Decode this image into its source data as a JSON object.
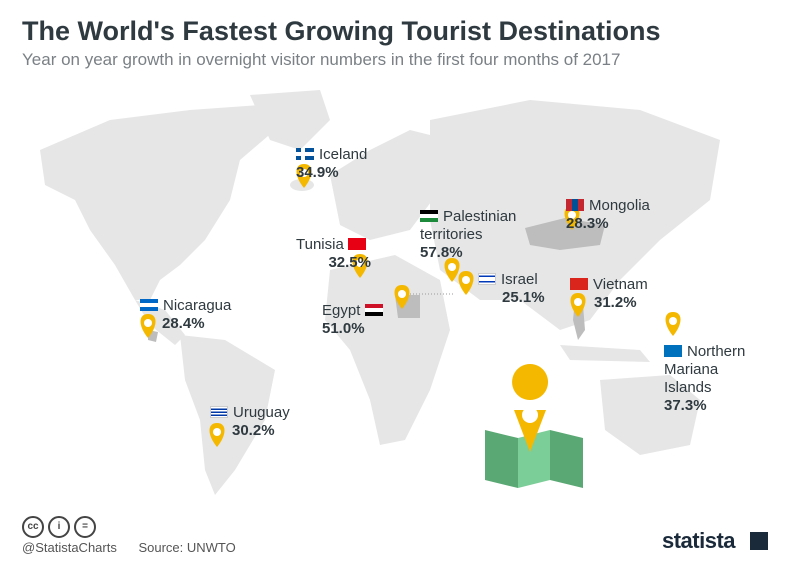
{
  "title": "The World's Fastest Growing Tourist Destinations",
  "subtitle": "Year on year growth in overnight visitor numbers in the first four months of 2017",
  "footer": {
    "handle": "@StatistaCharts",
    "source": "Source: UNWTO",
    "brand": "statista"
  },
  "colors": {
    "pin": "#f5b800",
    "land": "#e6e6e6",
    "highlight": "#bdbdbd",
    "text": "#2f3a40",
    "map_icon_green": "#6cc08b"
  },
  "chart_data": {
    "type": "table",
    "title": "The World's Fastest Growing Tourist Destinations",
    "subtitle": "Year on year growth in overnight visitor numbers in the first four months of 2017",
    "unit": "%",
    "categories": [
      "Iceland",
      "Palestinian territories",
      "Mongolia",
      "Tunisia",
      "Israel",
      "Vietnam",
      "Nicaragua",
      "Egypt",
      "Northern Mariana Islands",
      "Uruguay"
    ],
    "values": [
      34.9,
      57.8,
      28.3,
      32.5,
      25.1,
      31.2,
      28.4,
      51.0,
      37.3,
      30.2
    ],
    "display": [
      "34.9%",
      "57.8%",
      "28.3%",
      "32.5%",
      "25.1%",
      "31.2%",
      "28.4%",
      "51.0%",
      "37.3%",
      "30.2%"
    ],
    "names": [
      "Iceland",
      "Palestinian\nterritories",
      "Mongolia",
      "Tunisia",
      "Israel",
      "Vietnam",
      "Nicaragua",
      "Egypt",
      "Northern\nMariana\nIslands",
      "Uruguay"
    ]
  }
}
